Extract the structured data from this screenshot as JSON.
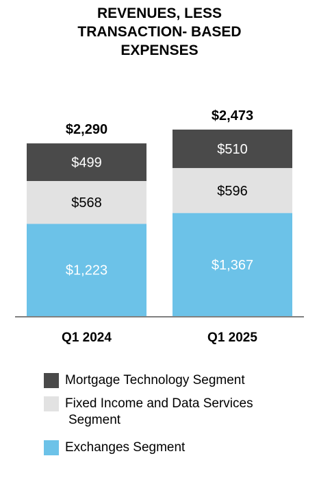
{
  "title_lines": [
    "REVENUES, LESS",
    "TRANSACTION- BASED",
    "EXPENSES"
  ],
  "chart_data": {
    "type": "bar",
    "stacked": true,
    "categories": [
      "Q1 2024",
      "Q1 2025"
    ],
    "totals": [
      2290,
      2473
    ],
    "total_labels": [
      "$2,290",
      "$2,473"
    ],
    "series": [
      {
        "name": "Exchanges Segment",
        "values": [
          1223,
          1367
        ],
        "labels": [
          "$1,223",
          "$1,367"
        ],
        "color": "#6cc2e8",
        "label_color": "#ffffff"
      },
      {
        "name": "Fixed Income and Data Services Segment",
        "values": [
          568,
          596
        ],
        "labels": [
          "$568",
          "$596"
        ],
        "color": "#e2e2e2",
        "label_color": "#000000"
      },
      {
        "name": "Mortgage Technology Segment",
        "values": [
          499,
          510
        ],
        "labels": [
          "$499",
          "$510"
        ],
        "color": "#4a4a4a",
        "label_color": "#ffffff"
      }
    ],
    "ylim": [
      0,
      2740
    ],
    "grid": false,
    "legend_position": "bottom"
  },
  "legend": [
    {
      "lines": [
        "Mortgage Technology Segment"
      ],
      "color": "#4a4a4a"
    },
    {
      "lines": [
        "Fixed Income and Data Services",
        "Segment"
      ],
      "color": "#e2e2e2"
    },
    {
      "lines": [
        "Exchanges Segment"
      ],
      "color": "#6cc2e8"
    }
  ]
}
